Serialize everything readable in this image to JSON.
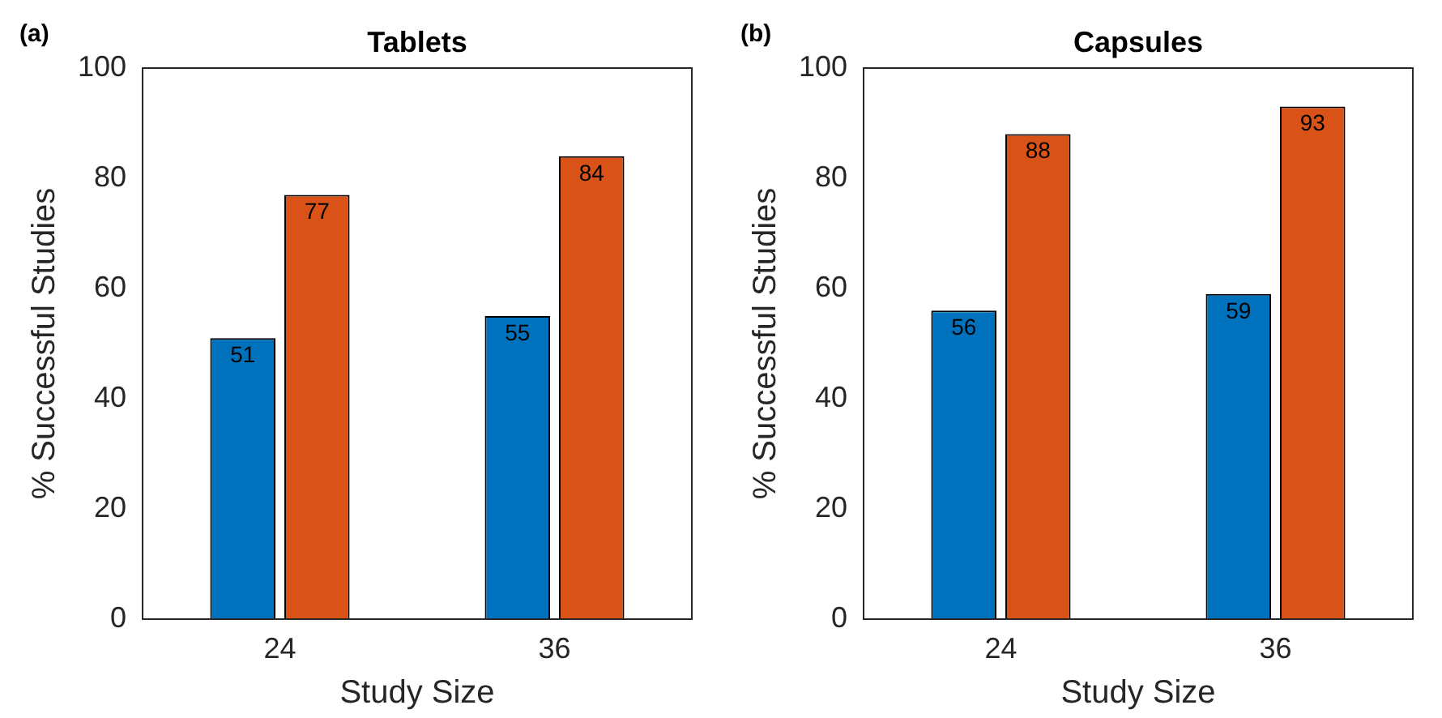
{
  "chart_data": [
    {
      "type": "bar",
      "title": "Tablets",
      "xlabel": "Study Size",
      "ylabel": "% Successful Studies",
      "categories": [
        "24",
        "36"
      ],
      "series": [
        {
          "color": "#0072bd",
          "values": [
            51,
            55
          ]
        },
        {
          "color": "#d95319",
          "values": [
            77,
            84
          ]
        }
      ],
      "ylim": [
        0,
        100
      ],
      "yticks": [
        0,
        20,
        40,
        60,
        80,
        100
      ],
      "data_labels": true,
      "grid": false,
      "legend": false,
      "annotations": [
        "(a)"
      ]
    },
    {
      "type": "bar",
      "title": "Capsules",
      "xlabel": "Study Size",
      "ylabel": "% Successful Studies",
      "categories": [
        "24",
        "36"
      ],
      "series": [
        {
          "color": "#0072bd",
          "values": [
            56,
            59
          ]
        },
        {
          "color": "#d95319",
          "values": [
            88,
            93
          ]
        }
      ],
      "ylim": [
        0,
        100
      ],
      "yticks": [
        0,
        20,
        40,
        60,
        80,
        100
      ],
      "data_labels": true,
      "grid": false,
      "legend": false,
      "annotations": [
        "(b)"
      ]
    }
  ]
}
